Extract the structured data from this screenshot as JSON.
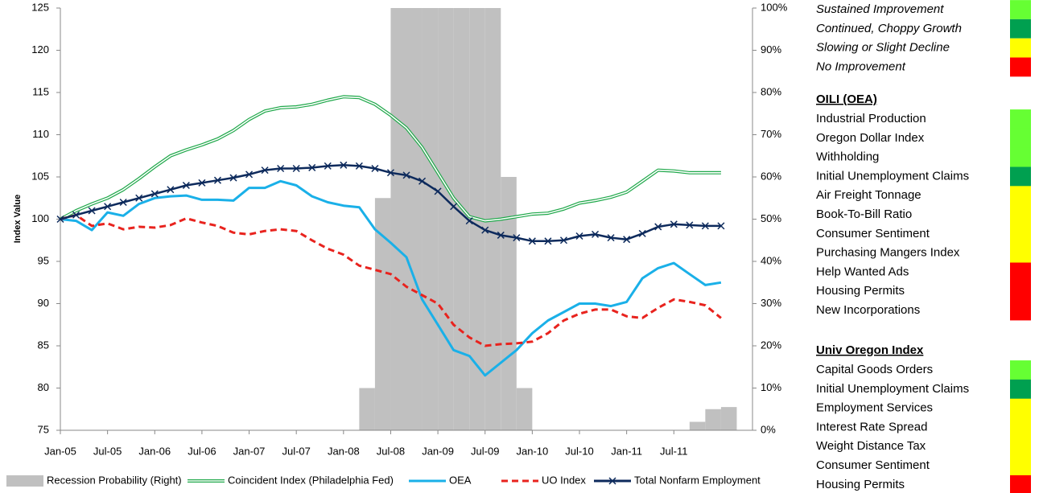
{
  "chart_data": {
    "type": "combo",
    "y_label": "Index Value",
    "x": [
      0,
      2,
      4,
      6,
      8,
      10,
      12,
      14,
      16,
      18,
      20,
      22,
      24,
      26,
      28,
      30,
      32,
      34,
      36,
      38,
      40,
      42,
      44,
      46,
      48,
      50,
      52,
      54,
      56,
      58,
      60,
      62,
      64,
      66,
      68,
      70,
      72,
      74,
      76,
      78,
      80,
      82,
      84
    ],
    "xlim": [
      0,
      88
    ],
    "xticks": [
      {
        "value": 0,
        "label": "Jan-05"
      },
      {
        "value": 6,
        "label": "Jul-05"
      },
      {
        "value": 12,
        "label": "Jan-06"
      },
      {
        "value": 18,
        "label": "Jul-06"
      },
      {
        "value": 24,
        "label": "Jan-07"
      },
      {
        "value": 30,
        "label": "Jul-07"
      },
      {
        "value": 36,
        "label": "Jan-08"
      },
      {
        "value": 42,
        "label": "Jul-08"
      },
      {
        "value": 48,
        "label": "Jan-09"
      },
      {
        "value": 54,
        "label": "Jul-09"
      },
      {
        "value": 60,
        "label": "Jan-10"
      },
      {
        "value": 66,
        "label": "Jul-10"
      },
      {
        "value": 72,
        "label": "Jan-11"
      },
      {
        "value": 78,
        "label": "Jul-11"
      }
    ],
    "ylim": [
      75,
      125
    ],
    "yticks": [
      75,
      80,
      85,
      90,
      95,
      100,
      105,
      110,
      115,
      120,
      125
    ],
    "y2lim": [
      0,
      100
    ],
    "y2ticks": [
      {
        "value": 0,
        "label": "0%"
      },
      {
        "value": 10,
        "label": "10%"
      },
      {
        "value": 20,
        "label": "20%"
      },
      {
        "value": 30,
        "label": "30%"
      },
      {
        "value": 40,
        "label": "40%"
      },
      {
        "value": 50,
        "label": "50%"
      },
      {
        "value": 60,
        "label": "60%"
      },
      {
        "value": 70,
        "label": "70%"
      },
      {
        "value": 80,
        "label": "80%"
      },
      {
        "value": 90,
        "label": "90%"
      },
      {
        "value": 100,
        "label": "100%"
      }
    ],
    "series": [
      {
        "name": "Recession Probability (Right)",
        "style": "bar",
        "axis": "y2",
        "color": "#c0c0c0",
        "values": [
          0,
          0,
          0,
          0,
          0,
          0,
          0,
          0,
          0,
          0,
          0,
          0,
          0,
          0,
          0,
          0,
          0,
          0,
          0,
          10,
          55,
          100,
          100,
          100,
          100,
          100,
          100,
          100,
          60,
          10,
          0,
          0,
          0,
          0,
          0,
          0,
          0,
          0,
          0,
          0,
          2,
          5,
          5.5
        ]
      },
      {
        "name": "Coincident Index (Philadelphia Fed)",
        "style": "double",
        "color": "#1fa84a",
        "values": [
          100,
          101,
          101.8,
          102.5,
          103.5,
          104.8,
          106.2,
          107.5,
          108.2,
          108.8,
          109.5,
          110.5,
          111.8,
          112.8,
          113.2,
          113.3,
          113.6,
          114.1,
          114.5,
          114.4,
          113.6,
          112.3,
          110.8,
          108.5,
          105.5,
          102.5,
          100.3,
          99.8,
          100,
          100.3,
          100.6,
          100.7,
          101.2,
          101.9,
          102.2,
          102.6,
          103.2,
          104.5,
          105.8,
          105.7,
          105.5,
          105.5,
          105.5
        ]
      },
      {
        "name": "OEA",
        "style": "solid",
        "color": "#1ab0e8",
        "values": [
          100,
          99.8,
          98.7,
          100.8,
          100.4,
          101.8,
          102.5,
          102.7,
          102.8,
          102.3,
          102.3,
          102.2,
          103.7,
          103.7,
          104.5,
          104,
          102.7,
          102,
          101.6,
          101.4,
          98.8,
          97.2,
          95.5,
          90.5,
          87.5,
          84.5,
          83.8,
          81.5,
          83,
          84.5,
          86.5,
          88,
          89,
          90,
          90,
          89.7,
          90.2,
          93,
          94.2,
          94.8,
          93.5,
          92.2,
          92.5
        ]
      },
      {
        "name": "UO Index",
        "style": "dashed",
        "color": "#e8231e",
        "values": [
          100,
          100.5,
          99.2,
          99.5,
          98.8,
          99.1,
          99,
          99.3,
          100.1,
          99.6,
          99.2,
          98.4,
          98.2,
          98.6,
          98.8,
          98.6,
          97.5,
          96.5,
          95.8,
          94.5,
          94,
          93.5,
          92,
          91,
          90,
          87.5,
          86,
          85,
          85.2,
          85.3,
          85.5,
          86.5,
          88,
          88.8,
          89.3,
          89.3,
          88.5,
          88.3,
          89.5,
          90.5,
          90.2,
          89.8,
          88.3
        ]
      },
      {
        "name": "Total Nonfarm  Employment",
        "style": "cross",
        "color": "#0d2a5c",
        "values": [
          100,
          100.5,
          101,
          101.5,
          102,
          102.5,
          103,
          103.5,
          104,
          104.3,
          104.6,
          104.9,
          105.3,
          105.8,
          106,
          106,
          106.1,
          106.3,
          106.4,
          106.3,
          106,
          105.5,
          105.2,
          104.5,
          103.3,
          101.5,
          99.8,
          98.7,
          98.1,
          97.8,
          97.4,
          97.4,
          97.5,
          98,
          98.2,
          97.8,
          97.6,
          98.3,
          99.1,
          99.4,
          99.3,
          99.2,
          99.2
        ]
      }
    ]
  },
  "indicators": {
    "key": [
      {
        "label": "Sustained Improvement",
        "color": "#66ff33"
      },
      {
        "label": "Continued, Choppy Growth",
        "color": "#00a050"
      },
      {
        "label": "Slowing or Slight Decline",
        "color": "#ffff00"
      },
      {
        "label": "No Improvement",
        "color": "#ff0000"
      }
    ],
    "groups": [
      {
        "title": "OILI (OEA)",
        "items": [
          {
            "label": "Industrial Production",
            "color": "#66ff33"
          },
          {
            "label": "Oregon Dollar Index",
            "color": "#66ff33"
          },
          {
            "label": "Withholding",
            "color": "#66ff33"
          },
          {
            "label": "Initial Unemployment Claims",
            "color": "#00a050"
          },
          {
            "label": "Air Freight Tonnage",
            "color": "#ffff00"
          },
          {
            "label": "Book-To-Bill Ratio",
            "color": "#ffff00"
          },
          {
            "label": "Consumer Sentiment",
            "color": "#ffff00"
          },
          {
            "label": "Purchasing Mangers Index",
            "color": "#ffff00"
          },
          {
            "label": "Help Wanted Ads",
            "color": "#ff0000"
          },
          {
            "label": "Housing Permits",
            "color": "#ff0000"
          },
          {
            "label": "New Incorporations",
            "color": "#ff0000"
          }
        ]
      },
      {
        "title": "Univ Oregon Index",
        "items": [
          {
            "label": "Capital Goods Orders",
            "color": "#66ff33"
          },
          {
            "label": "Initial Unemployment Claims",
            "color": "#00a050"
          },
          {
            "label": "Employment Services",
            "color": "#ffff00"
          },
          {
            "label": "Interest Rate Spread",
            "color": "#ffff00"
          },
          {
            "label": "Weight Distance Tax",
            "color": "#ffff00"
          },
          {
            "label": "Consumer Sentiment",
            "color": "#ffff00"
          },
          {
            "label": "Housing Permits",
            "color": "#ff0000"
          }
        ]
      }
    ]
  }
}
